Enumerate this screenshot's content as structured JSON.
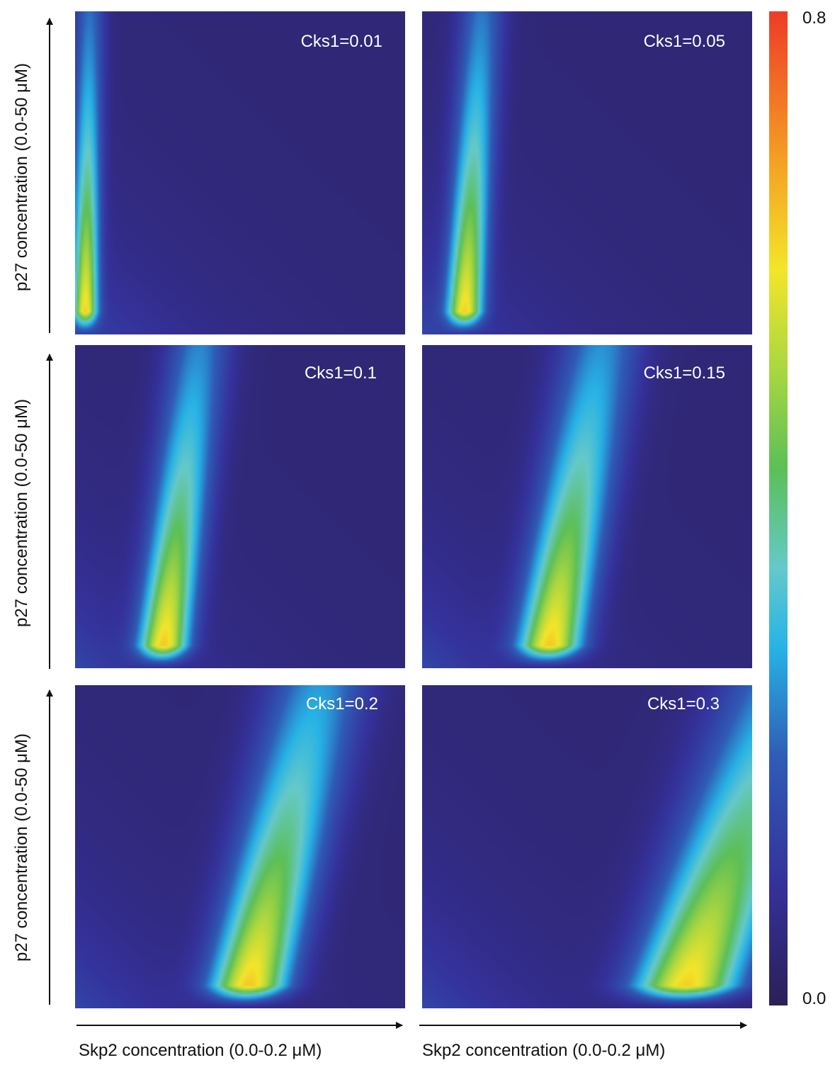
{
  "chart_data": {
    "type": "heatmap",
    "colormap": "viridis-like (deep indigo to blue, cyan, green, yellow, orange, red)",
    "colorbar": {
      "min": 0.0,
      "max": 0.8,
      "min_label": "0.0",
      "max_label": "0.8"
    },
    "xlabel": "Skp2 concentration (0.0-0.2 μM)",
    "ylabel": "p27 concentration (0.0-50 μM)",
    "xlim": [
      0.0,
      0.2
    ],
    "ylim": [
      0.0,
      50
    ],
    "panels": [
      {
        "label": "Cks1=0.01",
        "cks1": 0.01,
        "peak_x": 0.006,
        "peak_y": 4,
        "peak_value": 0.62
      },
      {
        "label": "Cks1=0.05",
        "cks1": 0.05,
        "peak_x": 0.025,
        "peak_y": 6,
        "peak_value": 0.62
      },
      {
        "label": "Cks1=0.1",
        "cks1": 0.1,
        "peak_x": 0.052,
        "peak_y": 6,
        "peak_value": 0.63
      },
      {
        "label": "Cks1=0.15",
        "cks1": 0.15,
        "peak_x": 0.075,
        "peak_y": 6,
        "peak_value": 0.63
      },
      {
        "label": "Cks1=0.2",
        "cks1": 0.2,
        "peak_x": 0.102,
        "peak_y": 5,
        "peak_value": 0.63
      },
      {
        "label": "Cks1=0.3",
        "cks1": 0.3,
        "peak_x": 0.155,
        "peak_y": 5,
        "peak_value": 0.62
      }
    ]
  }
}
